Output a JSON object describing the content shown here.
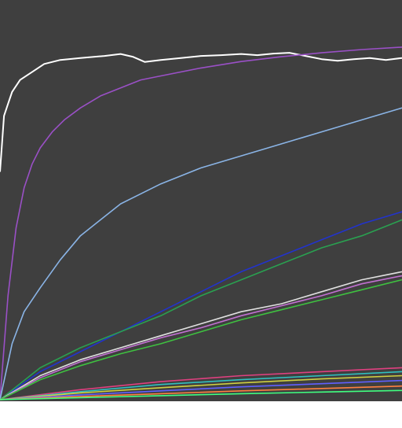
{
  "colors": {
    "background": "#3f3f3f",
    "bottom_strip": "#ffffff"
  },
  "chart_data": {
    "type": "line",
    "title": "",
    "xlabel": "",
    "ylabel": "",
    "grid": false,
    "legend": "none",
    "xlim": [
      0,
      1
    ],
    "ylim": [
      0,
      1
    ],
    "series": [
      {
        "color": "#ffffff",
        "x": [
          0.0,
          0.01,
          0.02,
          0.03,
          0.05,
          0.08,
          0.11,
          0.15,
          0.2,
          0.26,
          0.3,
          0.33,
          0.36,
          0.4,
          0.45,
          0.5,
          0.55,
          0.6,
          0.64,
          0.68,
          0.72,
          0.76,
          0.8,
          0.84,
          0.88,
          0.92,
          0.96,
          1.0
        ],
        "y": [
          0.57,
          0.71,
          0.74,
          0.77,
          0.8,
          0.82,
          0.84,
          0.85,
          0.855,
          0.86,
          0.865,
          0.858,
          0.845,
          0.85,
          0.855,
          0.86,
          0.862,
          0.865,
          0.862,
          0.866,
          0.868,
          0.86,
          0.852,
          0.848,
          0.852,
          0.855,
          0.85,
          0.855
        ]
      },
      {
        "color": "#9a50c6",
        "x": [
          0.0,
          0.02,
          0.04,
          0.06,
          0.08,
          0.1,
          0.13,
          0.16,
          0.2,
          0.25,
          0.3,
          0.35,
          0.4,
          0.5,
          0.6,
          0.7,
          0.8,
          0.9,
          1.0
        ],
        "y": [
          0.0,
          0.26,
          0.43,
          0.53,
          0.59,
          0.63,
          0.67,
          0.7,
          0.73,
          0.76,
          0.78,
          0.8,
          0.81,
          0.83,
          0.846,
          0.858,
          0.868,
          0.876,
          0.882
        ]
      },
      {
        "color": "#8ab4e6",
        "x": [
          0.0,
          0.03,
          0.06,
          0.1,
          0.15,
          0.2,
          0.25,
          0.3,
          0.4,
          0.5,
          0.6,
          0.7,
          0.8,
          0.9,
          1.0
        ],
        "y": [
          0.0,
          0.14,
          0.22,
          0.28,
          0.35,
          0.41,
          0.45,
          0.49,
          0.54,
          0.58,
          0.61,
          0.64,
          0.67,
          0.7,
          0.73
        ]
      },
      {
        "color": "#2233cc",
        "x": [
          0.0,
          0.1,
          0.2,
          0.3,
          0.4,
          0.5,
          0.6,
          0.7,
          0.8,
          0.9,
          1.0
        ],
        "y": [
          0.0,
          0.07,
          0.12,
          0.17,
          0.22,
          0.27,
          0.32,
          0.36,
          0.4,
          0.44,
          0.47
        ]
      },
      {
        "color": "#2aa050",
        "x": [
          0.0,
          0.1,
          0.2,
          0.3,
          0.4,
          0.5,
          0.6,
          0.7,
          0.8,
          0.9,
          1.0
        ],
        "y": [
          0.0,
          0.08,
          0.13,
          0.17,
          0.21,
          0.26,
          0.3,
          0.34,
          0.38,
          0.41,
          0.45
        ]
      },
      {
        "color": "#e0e0e0",
        "x": [
          0.0,
          0.1,
          0.2,
          0.3,
          0.4,
          0.5,
          0.6,
          0.7,
          0.8,
          0.9,
          1.0
        ],
        "y": [
          0.0,
          0.06,
          0.1,
          0.13,
          0.16,
          0.19,
          0.22,
          0.24,
          0.27,
          0.3,
          0.32
        ]
      },
      {
        "color": "#c070d0",
        "x": [
          0.0,
          0.1,
          0.2,
          0.3,
          0.4,
          0.5,
          0.6,
          0.7,
          0.8,
          0.9,
          1.0
        ],
        "y": [
          0.0,
          0.055,
          0.095,
          0.125,
          0.155,
          0.18,
          0.21,
          0.235,
          0.26,
          0.29,
          0.31
        ]
      },
      {
        "color": "#3fc040",
        "x": [
          0.0,
          0.1,
          0.2,
          0.3,
          0.4,
          0.5,
          0.6,
          0.7,
          0.8,
          0.9,
          1.0
        ],
        "y": [
          0.0,
          0.05,
          0.085,
          0.115,
          0.14,
          0.17,
          0.2,
          0.225,
          0.25,
          0.275,
          0.3
        ]
      },
      {
        "color": "#e04080",
        "x": [
          0.0,
          0.2,
          0.4,
          0.6,
          0.8,
          1.0
        ],
        "y": [
          0.0,
          0.025,
          0.045,
          0.06,
          0.07,
          0.08
        ]
      },
      {
        "color": "#30c0c0",
        "x": [
          0.0,
          0.2,
          0.4,
          0.6,
          0.8,
          1.0
        ],
        "y": [
          0.0,
          0.02,
          0.038,
          0.05,
          0.06,
          0.07
        ]
      },
      {
        "color": "#d0d040",
        "x": [
          0.0,
          0.2,
          0.4,
          0.6,
          0.8,
          1.0
        ],
        "y": [
          0.0,
          0.017,
          0.03,
          0.042,
          0.052,
          0.06
        ]
      },
      {
        "color": "#6060ff",
        "x": [
          0.0,
          0.2,
          0.4,
          0.6,
          0.8,
          1.0
        ],
        "y": [
          0.0,
          0.012,
          0.022,
          0.032,
          0.04,
          0.048
        ]
      },
      {
        "color": "#ff8040",
        "x": [
          0.0,
          0.2,
          0.4,
          0.6,
          0.8,
          1.0
        ],
        "y": [
          0.0,
          0.008,
          0.015,
          0.022,
          0.028,
          0.034
        ]
      },
      {
        "color": "#40ff80",
        "x": [
          0.0,
          0.2,
          0.4,
          0.6,
          0.8,
          1.0
        ],
        "y": [
          0.0,
          0.005,
          0.01,
          0.015,
          0.019,
          0.023
        ]
      }
    ]
  }
}
